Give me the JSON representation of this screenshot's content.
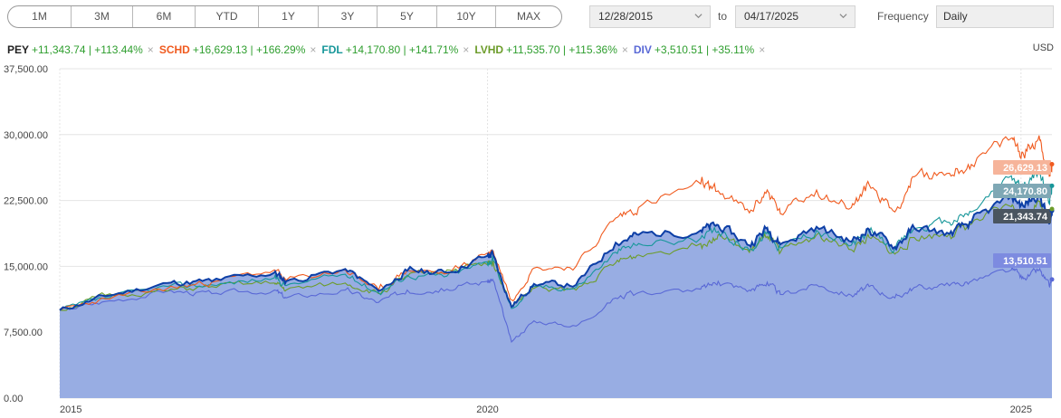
{
  "range_buttons": [
    "1M",
    "3M",
    "6M",
    "YTD",
    "1Y",
    "3Y",
    "5Y",
    "10Y",
    "MAX"
  ],
  "date_from": "12/28/2015",
  "to_label": "to",
  "date_to": "04/17/2025",
  "frequency_label": "Frequency",
  "frequency_value": "Daily",
  "currency": "USD",
  "colors": {
    "PEY": "#0d3fa6",
    "SCHD": "#f05a1e",
    "FDL": "#17979a",
    "LVHD": "#6c9c2a",
    "DIV": "#5a69d6",
    "area": "#98ade3"
  },
  "legend": [
    {
      "symbol": "PEY",
      "change": "+11,343.74 | +113.44%"
    },
    {
      "symbol": "SCHD",
      "change": "+16,629.13 | +166.29%"
    },
    {
      "symbol": "FDL",
      "change": "+14,170.80 | +141.71%"
    },
    {
      "symbol": "LVHD",
      "change": "+11,535.70 | +115.36%"
    },
    {
      "symbol": "DIV",
      "change": "+3,510.51 | +35.11%"
    }
  ],
  "chart_data": {
    "type": "line",
    "x_start": "2015-12-28",
    "x_end": "2025-04-17",
    "ylim": [
      0,
      37500
    ],
    "y_ticks": [
      0,
      7500,
      15000,
      22500,
      30000,
      37500
    ],
    "y_tick_labels": [
      "0.00",
      "7,500.00",
      "15,000.00",
      "22,500.00",
      "30,000.00",
      "37,500.00"
    ],
    "x_tick_labels": [
      "2015",
      "2020",
      "2025"
    ],
    "x_tick_dates": [
      "2015-12-28",
      "2020-01-01",
      "2025-01-01"
    ],
    "grid": true,
    "series": [
      {
        "name": "PEY",
        "end_label": "21,343.74",
        "area": true,
        "points": [
          [
            "2015-12-28",
            10000
          ],
          [
            "2016-06-01",
            11600
          ],
          [
            "2017-01-01",
            13100
          ],
          [
            "2017-06-01",
            13300
          ],
          [
            "2018-01-01",
            14300
          ],
          [
            "2018-02-10",
            13300
          ],
          [
            "2018-09-01",
            14700
          ],
          [
            "2018-12-24",
            12200
          ],
          [
            "2019-04-01",
            14500
          ],
          [
            "2019-08-15",
            14300
          ],
          [
            "2019-12-31",
            16200
          ],
          [
            "2020-01-20",
            16300
          ],
          [
            "2020-03-23",
            10400
          ],
          [
            "2020-06-08",
            13000
          ],
          [
            "2020-10-30",
            12900
          ],
          [
            "2021-03-15",
            17700
          ],
          [
            "2021-06-01",
            18600
          ],
          [
            "2021-12-31",
            19100
          ],
          [
            "2022-03-01",
            19700
          ],
          [
            "2022-06-16",
            17400
          ],
          [
            "2022-08-16",
            19400
          ],
          [
            "2022-09-30",
            17500
          ],
          [
            "2023-02-01",
            19500
          ],
          [
            "2023-05-31",
            17800
          ],
          [
            "2023-07-31",
            19200
          ],
          [
            "2023-10-27",
            17200
          ],
          [
            "2024-01-01",
            19400
          ],
          [
            "2024-05-01",
            18700
          ],
          [
            "2024-07-15",
            20000
          ],
          [
            "2024-11-29",
            23000
          ],
          [
            "2025-01-10",
            21800
          ],
          [
            "2025-03-04",
            23500
          ],
          [
            "2025-04-08",
            19800
          ],
          [
            "2025-04-17",
            21343.74
          ]
        ]
      },
      {
        "name": "SCHD",
        "end_label": "26,629.13",
        "area": false,
        "points": [
          [
            "2015-12-28",
            10000
          ],
          [
            "2016-06-01",
            11300
          ],
          [
            "2017-01-01",
            12500
          ],
          [
            "2017-06-01",
            13200
          ],
          [
            "2018-01-01",
            14600
          ],
          [
            "2018-02-10",
            13400
          ],
          [
            "2018-09-01",
            14600
          ],
          [
            "2018-12-24",
            12300
          ],
          [
            "2019-04-01",
            14600
          ],
          [
            "2019-08-15",
            14200
          ],
          [
            "2019-12-31",
            16500
          ],
          [
            "2020-01-20",
            16800
          ],
          [
            "2020-03-23",
            11200
          ],
          [
            "2020-06-08",
            14800
          ],
          [
            "2020-10-30",
            15000
          ],
          [
            "2021-03-15",
            20500
          ],
          [
            "2021-06-01",
            21700
          ],
          [
            "2021-12-31",
            24400
          ],
          [
            "2022-03-01",
            23600
          ],
          [
            "2022-06-16",
            21100
          ],
          [
            "2022-08-16",
            23700
          ],
          [
            "2022-09-30",
            21000
          ],
          [
            "2023-02-01",
            23700
          ],
          [
            "2023-05-31",
            21700
          ],
          [
            "2023-07-31",
            24300
          ],
          [
            "2023-10-27",
            21200
          ],
          [
            "2024-01-01",
            25200
          ],
          [
            "2024-05-01",
            25600
          ],
          [
            "2024-07-15",
            26600
          ],
          [
            "2024-11-29",
            29600
          ],
          [
            "2025-01-10",
            27700
          ],
          [
            "2025-03-04",
            29900
          ],
          [
            "2025-04-08",
            25200
          ],
          [
            "2025-04-17",
            26629.13
          ]
        ]
      },
      {
        "name": "FDL",
        "end_label": "24,170.80",
        "area": false,
        "points": [
          [
            "2015-12-28",
            10000
          ],
          [
            "2016-06-01",
            11400
          ],
          [
            "2017-01-01",
            12700
          ],
          [
            "2017-06-01",
            12900
          ],
          [
            "2018-01-01",
            13700
          ],
          [
            "2018-02-10",
            12800
          ],
          [
            "2018-09-01",
            14100
          ],
          [
            "2018-12-24",
            12000
          ],
          [
            "2019-04-01",
            14000
          ],
          [
            "2019-08-15",
            13900
          ],
          [
            "2019-12-31",
            15500
          ],
          [
            "2020-01-20",
            15700
          ],
          [
            "2020-03-23",
            10200
          ],
          [
            "2020-06-08",
            12700
          ],
          [
            "2020-10-30",
            12600
          ],
          [
            "2021-03-15",
            16600
          ],
          [
            "2021-06-01",
            17600
          ],
          [
            "2021-12-31",
            18200
          ],
          [
            "2022-03-01",
            19000
          ],
          [
            "2022-06-16",
            16800
          ],
          [
            "2022-08-16",
            18900
          ],
          [
            "2022-09-30",
            17100
          ],
          [
            "2023-02-01",
            19100
          ],
          [
            "2023-05-31",
            17400
          ],
          [
            "2023-07-31",
            18900
          ],
          [
            "2023-10-27",
            17000
          ],
          [
            "2024-01-01",
            19300
          ],
          [
            "2024-05-01",
            20000
          ],
          [
            "2024-07-15",
            21200
          ],
          [
            "2024-11-29",
            25300
          ],
          [
            "2025-01-10",
            23800
          ],
          [
            "2025-03-04",
            26000
          ],
          [
            "2025-04-08",
            22400
          ],
          [
            "2025-04-17",
            24170.8
          ]
        ]
      },
      {
        "name": "LVHD",
        "end_label": "21,535.70",
        "area": false,
        "points": [
          [
            "2015-12-28",
            10000
          ],
          [
            "2016-06-01",
            11700
          ],
          [
            "2017-01-01",
            12200
          ],
          [
            "2017-06-01",
            12700
          ],
          [
            "2018-01-01",
            13100
          ],
          [
            "2018-02-10",
            12300
          ],
          [
            "2018-09-01",
            13100
          ],
          [
            "2018-12-24",
            11900
          ],
          [
            "2019-04-01",
            13800
          ],
          [
            "2019-08-15",
            14600
          ],
          [
            "2019-12-31",
            15200
          ],
          [
            "2020-01-20",
            15600
          ],
          [
            "2020-03-23",
            10500
          ],
          [
            "2020-06-08",
            12500
          ],
          [
            "2020-10-30",
            12300
          ],
          [
            "2021-03-15",
            15400
          ],
          [
            "2021-06-01",
            16300
          ],
          [
            "2021-12-31",
            17600
          ],
          [
            "2022-03-01",
            18600
          ],
          [
            "2022-06-16",
            16600
          ],
          [
            "2022-08-16",
            18400
          ],
          [
            "2022-09-30",
            16600
          ],
          [
            "2023-02-01",
            18600
          ],
          [
            "2023-05-31",
            16900
          ],
          [
            "2023-07-31",
            18300
          ],
          [
            "2023-10-27",
            16400
          ],
          [
            "2024-01-01",
            18300
          ],
          [
            "2024-05-01",
            18700
          ],
          [
            "2024-07-15",
            19800
          ],
          [
            "2024-11-29",
            21800
          ],
          [
            "2025-01-10",
            20600
          ],
          [
            "2025-03-04",
            22400
          ],
          [
            "2025-04-08",
            20400
          ],
          [
            "2025-04-17",
            21535.7
          ]
        ]
      },
      {
        "name": "DIV",
        "end_label": "13,510.51",
        "area": false,
        "points": [
          [
            "2015-12-28",
            10000
          ],
          [
            "2016-06-01",
            11000
          ],
          [
            "2017-01-01",
            12200
          ],
          [
            "2017-06-01",
            11900
          ],
          [
            "2018-01-01",
            12300
          ],
          [
            "2018-02-10",
            11400
          ],
          [
            "2018-09-01",
            12300
          ],
          [
            "2018-12-24",
            10900
          ],
          [
            "2019-04-01",
            12300
          ],
          [
            "2019-08-15",
            12400
          ],
          [
            "2019-12-31",
            13300
          ],
          [
            "2020-01-20",
            13400
          ],
          [
            "2020-03-23",
            6400
          ],
          [
            "2020-06-08",
            8800
          ],
          [
            "2020-10-30",
            8200
          ],
          [
            "2021-03-15",
            11400
          ],
          [
            "2021-06-01",
            12000
          ],
          [
            "2021-12-31",
            12400
          ],
          [
            "2022-03-01",
            13300
          ],
          [
            "2022-06-16",
            12300
          ],
          [
            "2022-08-16",
            13200
          ],
          [
            "2022-09-30",
            11800
          ],
          [
            "2023-02-01",
            12900
          ],
          [
            "2023-05-31",
            11700
          ],
          [
            "2023-07-31",
            12700
          ],
          [
            "2023-10-27",
            11400
          ],
          [
            "2024-01-01",
            12600
          ],
          [
            "2024-05-01",
            12800
          ],
          [
            "2024-07-15",
            13300
          ],
          [
            "2024-11-29",
            14600
          ],
          [
            "2025-01-10",
            13600
          ],
          [
            "2025-03-04",
            14600
          ],
          [
            "2025-04-08",
            12700
          ],
          [
            "2025-04-17",
            13510.51
          ]
        ]
      }
    ]
  }
}
